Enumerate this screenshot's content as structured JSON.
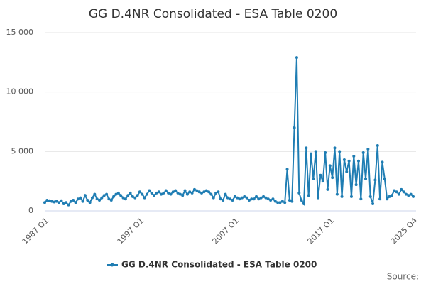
{
  "chart_data": {
    "type": "line",
    "title": "GG D.4NR Consolidated - ESA Table 0200",
    "categories": [
      "1987 Q1",
      null,
      null,
      null,
      null,
      null,
      null,
      null,
      null,
      null,
      null,
      null,
      null,
      null,
      null,
      null,
      null,
      null,
      null,
      null,
      null,
      null,
      null,
      null,
      null,
      null,
      null,
      null,
      null,
      null,
      null,
      null,
      null,
      null,
      null,
      null,
      null,
      null,
      null,
      null,
      "1997 Q1",
      null,
      null,
      null,
      null,
      null,
      null,
      null,
      null,
      null,
      null,
      null,
      null,
      null,
      null,
      null,
      null,
      null,
      null,
      null,
      null,
      null,
      null,
      null,
      null,
      null,
      null,
      null,
      null,
      null,
      null,
      null,
      null,
      null,
      null,
      null,
      null,
      null,
      null,
      null,
      "2007 Q1",
      null,
      null,
      null,
      null,
      null,
      null,
      null,
      null,
      null,
      null,
      null,
      null,
      null,
      null,
      null,
      null,
      null,
      null,
      null,
      null,
      null,
      null,
      null,
      null,
      null,
      null,
      null,
      null,
      null,
      null,
      null,
      null,
      null,
      null,
      null,
      null,
      null,
      null,
      null,
      "2017 Q1",
      null,
      null,
      null,
      null,
      null,
      null,
      null,
      null,
      null,
      null,
      null,
      null,
      null,
      null,
      null,
      null,
      null,
      null,
      null,
      null,
      null,
      null,
      null,
      null,
      null,
      null,
      null,
      null,
      null,
      null,
      null,
      null,
      null,
      null,
      "2025 Q4"
    ],
    "series": [
      {
        "name": "GG D.4NR Consolidated - ESA Table 0200",
        "color": "#1f7db3",
        "values": [
          700,
          900,
          850,
          800,
          750,
          800,
          700,
          850,
          600,
          700,
          500,
          800,
          900,
          700,
          1000,
          1100,
          800,
          1300,
          900,
          700,
          1100,
          1400,
          1000,
          900,
          1100,
          1300,
          1400,
          1000,
          900,
          1200,
          1400,
          1500,
          1300,
          1100,
          1000,
          1300,
          1500,
          1200,
          1100,
          1300,
          1600,
          1400,
          1100,
          1400,
          1700,
          1500,
          1300,
          1500,
          1600,
          1400,
          1500,
          1700,
          1500,
          1400,
          1600,
          1700,
          1500,
          1400,
          1300,
          1700,
          1400,
          1600,
          1500,
          1800,
          1700,
          1600,
          1500,
          1600,
          1700,
          1600,
          1400,
          1100,
          1500,
          1600,
          1000,
          900,
          1400,
          1100,
          1000,
          900,
          1200,
          1100,
          1000,
          1100,
          1200,
          1100,
          900,
          1000,
          1000,
          1200,
          1000,
          1100,
          1200,
          1100,
          1000,
          900,
          1000,
          800,
          700,
          700,
          800,
          700,
          3500,
          900,
          800,
          7000,
          12900,
          1500,
          900,
          600,
          5300,
          1300,
          4800,
          2700,
          5000,
          1100,
          3000,
          2500,
          4900,
          1800,
          3800,
          2800,
          5300,
          1400,
          5000,
          1200,
          4300,
          3300,
          4200,
          1200,
          4600,
          2200,
          4200,
          1000,
          4900,
          2700,
          5200,
          1200,
          600,
          2600,
          5500,
          1000,
          4100,
          2700,
          1000,
          1200,
          1300,
          1700,
          1600,
          1400,
          1800,
          1600,
          1400,
          1300,
          1400,
          1200
        ]
      }
    ],
    "ylim": [
      0,
      15000
    ],
    "yticks": [
      0,
      {
        "value": 5000,
        "label": "5 000"
      },
      {
        "value": 10000,
        "label": "10 000"
      },
      {
        "value": 15000,
        "label": "15 000"
      }
    ],
    "grid": true,
    "legend": "bottom",
    "source": "Source:"
  }
}
